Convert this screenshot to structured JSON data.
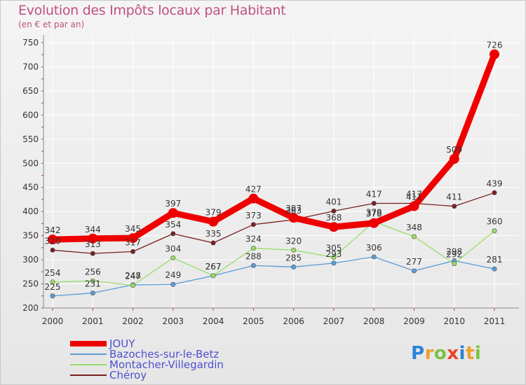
{
  "chart_data": {
    "type": "line",
    "title": "Evolution des Impôts locaux par Habitant",
    "subtitle": "(en € et par an)",
    "xlabel": "",
    "ylabel": "",
    "ylim": [
      200,
      750
    ],
    "yticks": [
      200,
      250,
      300,
      350,
      400,
      450,
      500,
      550,
      600,
      650,
      700,
      750
    ],
    "categories": [
      "2000",
      "2001",
      "2002",
      "2003",
      "2004",
      "2005",
      "2006",
      "2007",
      "2008",
      "2009",
      "2010",
      "2011"
    ],
    "grid": true,
    "legend_position": "bottom-left",
    "series": [
      {
        "name": "JOUY",
        "color": "#ee0000",
        "values": [
          342,
          344,
          345,
          397,
          379,
          427,
          387,
          368,
          376,
          411,
          509,
          726
        ]
      },
      {
        "name": "Bazoches-sur-le-Betz",
        "color": "#5b9bd5",
        "values": [
          225,
          231,
          248,
          249,
          267,
          288,
          285,
          293,
          306,
          277,
          298,
          281
        ]
      },
      {
        "name": "Montacher-Villegardin",
        "color": "#99dd66",
        "values": [
          254,
          256,
          247,
          304,
          267,
          324,
          320,
          305,
          379,
          348,
          292,
          360
        ]
      },
      {
        "name": "Chéroy",
        "color": "#7a1f1f",
        "values": [
          320,
          313,
          317,
          354,
          335,
          373,
          383,
          401,
          417,
          417,
          411,
          439
        ]
      }
    ]
  },
  "logo": {
    "letters": [
      "P",
      "r",
      "o",
      "x",
      "i",
      "t",
      "i"
    ],
    "colors": [
      "#2a84d6",
      "#f0a02a",
      "#7cc242",
      "#e8432a",
      "#2a84d6",
      "#f0a02a",
      "#7cc242"
    ]
  }
}
